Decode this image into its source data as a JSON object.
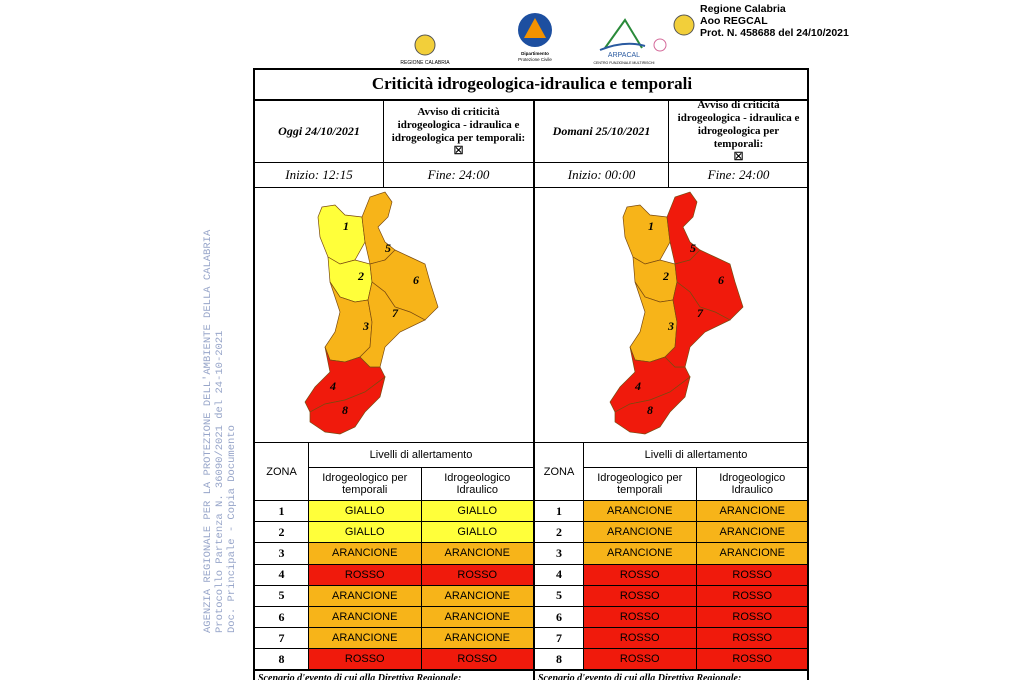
{
  "header": {
    "logos": [
      "REGIONE CALABRIA",
      "Dipartimento",
      "Protezione Civile",
      "ARPACAL",
      "CENTRO FUNZIONALE MULTIRISCHI"
    ],
    "stamp": [
      "Regione Calabria",
      "Aoo REGCAL",
      "Prot. N. 458688 del 24/10/2021"
    ]
  },
  "watermark": [
    "AGENZIA REGIONALE PER LA PROTEZIONE DELL'AMBIENTE DELLA CALABRIA",
    "Protocollo Partenza N. 36090/2021 del 24-10-2021",
    "Doc. Principale - Copia Documento"
  ],
  "title": "Criticità idrogeologica-idraulica e temporali",
  "colors": {
    "GIALLO": "#ffff3a",
    "ARANCIONE": "#f7b419",
    "ROSSO": "#f01a0c"
  },
  "panels": [
    {
      "date": "Oggi 24/10/2021",
      "avviso": "Avviso di criticità idrogeologica - idraulica e idrogeologica per temporali:",
      "checkbox": "☒",
      "start": "Inizio: 12:15",
      "end": "Fine: 24:00",
      "table": {
        "zone_header": "ZONA",
        "levels_header": "Livelli di allertamento",
        "columns": [
          "Idrogeologico per temporali",
          "Idrogeologico Idraulico"
        ],
        "rows": [
          {
            "zone": "1",
            "levels": [
              "GIALLO",
              "GIALLO"
            ]
          },
          {
            "zone": "2",
            "levels": [
              "GIALLO",
              "GIALLO"
            ]
          },
          {
            "zone": "3",
            "levels": [
              "ARANCIONE",
              "ARANCIONE"
            ]
          },
          {
            "zone": "4",
            "levels": [
              "ROSSO",
              "ROSSO"
            ]
          },
          {
            "zone": "5",
            "levels": [
              "ARANCIONE",
              "ARANCIONE"
            ]
          },
          {
            "zone": "6",
            "levels": [
              "ARANCIONE",
              "ARANCIONE"
            ]
          },
          {
            "zone": "7",
            "levels": [
              "ARANCIONE",
              "ARANCIONE"
            ]
          },
          {
            "zone": "8",
            "levels": [
              "ROSSO",
              "ROSSO"
            ]
          }
        ]
      }
    },
    {
      "date": "Domani 25/10/2021",
      "avviso": "Avviso di criticità idrogeologica - idraulica e idrogeologica per temporali:",
      "checkbox": "☒",
      "start": "Inizio: 00:00",
      "end": "Fine: 24:00",
      "table": {
        "zone_header": "ZONA",
        "levels_header": "Livelli di allertamento",
        "columns": [
          "Idrogeologico per temporali",
          "Idrogeologico Idraulico"
        ],
        "rows": [
          {
            "zone": "1",
            "levels": [
              "ARANCIONE",
              "ARANCIONE"
            ]
          },
          {
            "zone": "2",
            "levels": [
              "ARANCIONE",
              "ARANCIONE"
            ]
          },
          {
            "zone": "3",
            "levels": [
              "ARANCIONE",
              "ARANCIONE"
            ]
          },
          {
            "zone": "4",
            "levels": [
              "ROSSO",
              "ROSSO"
            ]
          },
          {
            "zone": "5",
            "levels": [
              "ROSSO",
              "ROSSO"
            ]
          },
          {
            "zone": "6",
            "levels": [
              "ROSSO",
              "ROSSO"
            ]
          },
          {
            "zone": "7",
            "levels": [
              "ROSSO",
              "ROSSO"
            ]
          },
          {
            "zone": "8",
            "levels": [
              "ROSSO",
              "ROSSO"
            ]
          }
        ]
      }
    }
  ],
  "footer": "Scenario d'evento di cui alla Direttiva Regionale:"
}
